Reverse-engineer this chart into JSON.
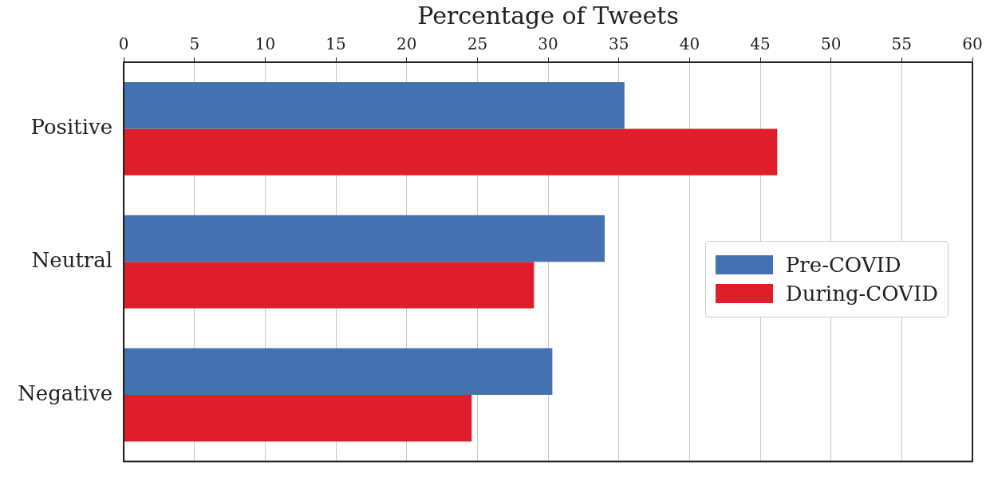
{
  "chart_data": {
    "type": "bar",
    "orientation": "horizontal",
    "xlabel": "Percentage of Tweets",
    "categories": [
      "Positive",
      "Neutral",
      "Negative"
    ],
    "series": [
      {
        "name": "Pre-COVID",
        "color": "#4472b0",
        "values": [
          35.4,
          34.0,
          30.3
        ]
      },
      {
        "name": "During-COVID",
        "color": "#e01e2b",
        "values": [
          46.2,
          29.0,
          24.6
        ]
      }
    ],
    "xlim": [
      0,
      60
    ],
    "xticks": [
      0,
      5,
      10,
      15,
      20,
      25,
      30,
      35,
      40,
      45,
      50,
      55,
      60
    ],
    "grid": "x",
    "legend": "right"
  }
}
